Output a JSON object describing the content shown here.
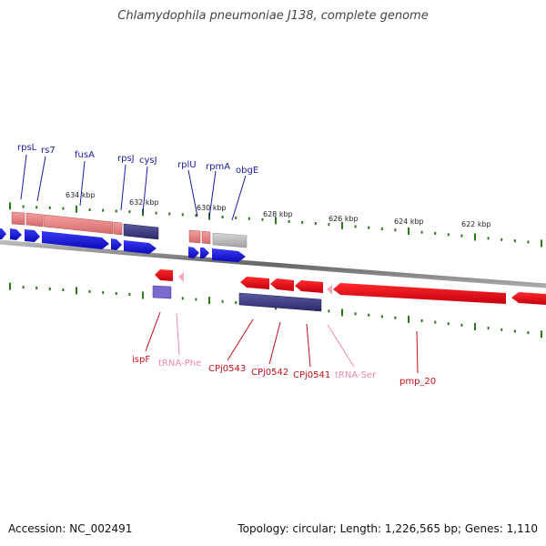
{
  "title": "Chlamydophila pneumoniae J138, complete genome",
  "footer": {
    "accession": "Accession: NC_002491",
    "topology": "Topology: circular; Length: 1,226,565 bp; Genes: 1,110"
  },
  "colors": {
    "forward_gene_label": "#1a1aa0",
    "reverse_gene_label": "#c0101a",
    "trna_label": "#ee8aa8",
    "forward_cds": "#1515e0",
    "reverse_cds": "#e8101a",
    "backbone": "#888888",
    "tick": "#2a7a1a"
  },
  "scale_labels": [
    "634 kbp",
    "632 kbp",
    "630 kbp",
    "628 kbp",
    "626 kbp",
    "624 kbp",
    "622 kbp"
  ],
  "forward_genes": [
    "rpsL",
    "rs7",
    "fusA",
    "rpsJ",
    "cysJ",
    "rplU",
    "rpmA",
    "obgE"
  ],
  "reverse_genes": [
    "ispF",
    "tRNA-Phe",
    "CPj0543",
    "CPj0542",
    "CPj0541",
    "tRNA-Ser",
    "pmp_20"
  ]
}
